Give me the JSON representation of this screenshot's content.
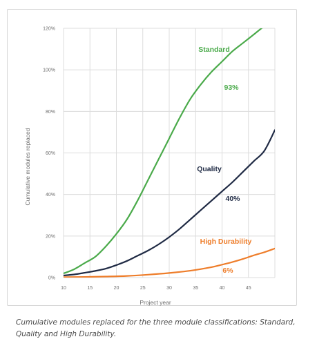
{
  "chart_data": {
    "type": "line",
    "title": "",
    "xlabel": "Project year",
    "ylabel": "Cumulative modules replaced",
    "xlim": [
      10,
      50
    ],
    "ylim": [
      0,
      120
    ],
    "x_ticks": [
      10,
      15,
      20,
      25,
      30,
      35,
      40,
      45
    ],
    "y_ticks": [
      0,
      20,
      40,
      60,
      80,
      100,
      120
    ],
    "y_tick_labels": [
      "0%",
      "20%",
      "40%",
      "60%",
      "80%",
      "100%",
      "120%"
    ],
    "grid": true,
    "series": [
      {
        "name": "Standard",
        "color": "#4aaa4a",
        "x": [
          10,
          12,
          14,
          16,
          18,
          20,
          22,
          24,
          26,
          28,
          30,
          32,
          34,
          36,
          38,
          40,
          42,
          44,
          46,
          48,
          50
        ],
        "y": [
          2,
          4,
          7,
          10,
          15,
          21,
          28,
          37,
          47,
          57,
          67,
          77,
          86,
          93,
          99,
          104,
          109,
          113,
          117,
          121,
          124
        ],
        "annotation": "93%"
      },
      {
        "name": "Quality",
        "color": "#1f2a44",
        "x": [
          10,
          12,
          14,
          16,
          18,
          20,
          22,
          24,
          26,
          28,
          30,
          32,
          34,
          36,
          38,
          40,
          42,
          44,
          46,
          48,
          50
        ],
        "y": [
          1,
          1.5,
          2.3,
          3.2,
          4.3,
          6,
          8,
          10.5,
          13,
          16,
          19.5,
          23.5,
          28,
          32.5,
          37,
          41.5,
          46,
          51,
          56,
          61,
          71
        ],
        "annotation": "40%"
      },
      {
        "name": "High Durability",
        "color": "#ee7d2a",
        "x": [
          10,
          14,
          18,
          22,
          26,
          30,
          34,
          38,
          40,
          42,
          44,
          46,
          48,
          50
        ],
        "y": [
          0.2,
          0.3,
          0.5,
          0.8,
          1.4,
          2.2,
          3.3,
          5,
          6.2,
          7.5,
          9,
          10.7,
          12.2,
          14
        ],
        "annotation": "6%"
      }
    ]
  },
  "caption": "Cumulative modules replaced for the three module classifications: Standard, Quality and High Durability."
}
